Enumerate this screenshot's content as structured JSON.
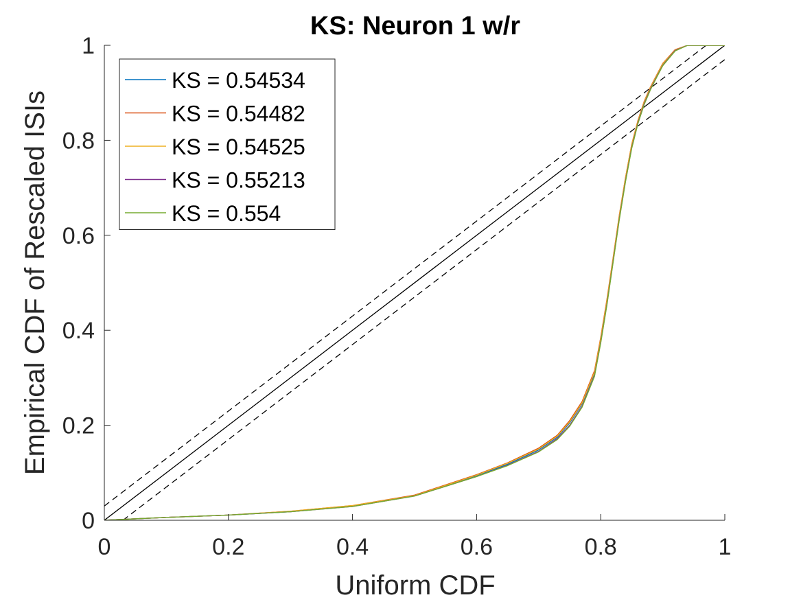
{
  "chart_data": {
    "type": "line",
    "title": "KS: Neuron 1 w/r",
    "xlabel": "Uniform CDF",
    "ylabel": "Empirical CDF of Rescaled ISIs",
    "xlim": [
      0,
      1
    ],
    "ylim": [
      0,
      1
    ],
    "xticks": [
      "0",
      "0.2",
      "0.4",
      "0.6",
      "0.8",
      "1"
    ],
    "yticks": [
      "0",
      "0.2",
      "0.4",
      "0.6",
      "0.8",
      "1"
    ],
    "grid": false,
    "legend_position": "top-left",
    "reference_lines": [
      {
        "role": "diagonal",
        "style": "solid",
        "color": "#000000",
        "points": [
          [
            0,
            0
          ],
          [
            1,
            1
          ]
        ]
      },
      {
        "role": "upper-bound",
        "style": "dashed",
        "color": "#000000",
        "points": [
          [
            0,
            0.03
          ],
          [
            0.97,
            1
          ]
        ]
      },
      {
        "role": "lower-bound",
        "style": "dashed",
        "color": "#000000",
        "points": [
          [
            0.03,
            0
          ],
          [
            1,
            0.97
          ]
        ]
      }
    ],
    "series": [
      {
        "name": "KS = 0.54534",
        "color": "#0072BD",
        "points": [
          [
            0,
            0
          ],
          [
            0.1,
            0.006
          ],
          [
            0.2,
            0.011
          ],
          [
            0.3,
            0.018
          ],
          [
            0.4,
            0.03
          ],
          [
            0.5,
            0.052
          ],
          [
            0.6,
            0.094
          ],
          [
            0.65,
            0.118
          ],
          [
            0.7,
            0.148
          ],
          [
            0.73,
            0.175
          ],
          [
            0.75,
            0.205
          ],
          [
            0.77,
            0.245
          ],
          [
            0.79,
            0.31
          ],
          [
            0.8,
            0.38
          ],
          [
            0.81,
            0.46
          ],
          [
            0.82,
            0.55
          ],
          [
            0.83,
            0.64
          ],
          [
            0.84,
            0.72
          ],
          [
            0.85,
            0.79
          ],
          [
            0.86,
            0.84
          ],
          [
            0.87,
            0.88
          ],
          [
            0.88,
            0.91
          ],
          [
            0.89,
            0.935
          ],
          [
            0.9,
            0.96
          ],
          [
            0.92,
            0.99
          ],
          [
            0.94,
            1
          ],
          [
            1,
            1
          ]
        ]
      },
      {
        "name": "KS = 0.54482",
        "color": "#D95319",
        "points": [
          [
            0,
            0
          ],
          [
            0.1,
            0.006
          ],
          [
            0.2,
            0.011
          ],
          [
            0.3,
            0.019
          ],
          [
            0.4,
            0.031
          ],
          [
            0.5,
            0.053
          ],
          [
            0.6,
            0.096
          ],
          [
            0.65,
            0.121
          ],
          [
            0.7,
            0.152
          ],
          [
            0.73,
            0.179
          ],
          [
            0.75,
            0.21
          ],
          [
            0.77,
            0.25
          ],
          [
            0.79,
            0.315
          ],
          [
            0.8,
            0.385
          ],
          [
            0.81,
            0.465
          ],
          [
            0.82,
            0.553
          ],
          [
            0.83,
            0.643
          ],
          [
            0.84,
            0.722
          ],
          [
            0.85,
            0.792
          ],
          [
            0.86,
            0.842
          ],
          [
            0.87,
            0.882
          ],
          [
            0.88,
            0.912
          ],
          [
            0.89,
            0.937
          ],
          [
            0.9,
            0.962
          ],
          [
            0.92,
            0.991
          ],
          [
            0.94,
            1
          ],
          [
            1,
            1
          ]
        ]
      },
      {
        "name": "KS = 0.54525",
        "color": "#EDB120",
        "points": [
          [
            0,
            0
          ],
          [
            0.1,
            0.006
          ],
          [
            0.2,
            0.011
          ],
          [
            0.3,
            0.019
          ],
          [
            0.4,
            0.031
          ],
          [
            0.5,
            0.052
          ],
          [
            0.6,
            0.095
          ],
          [
            0.65,
            0.12
          ],
          [
            0.7,
            0.15
          ],
          [
            0.73,
            0.177
          ],
          [
            0.75,
            0.207
          ],
          [
            0.77,
            0.247
          ],
          [
            0.79,
            0.312
          ],
          [
            0.8,
            0.382
          ],
          [
            0.81,
            0.462
          ],
          [
            0.82,
            0.551
          ],
          [
            0.83,
            0.641
          ],
          [
            0.84,
            0.721
          ],
          [
            0.85,
            0.791
          ],
          [
            0.86,
            0.841
          ],
          [
            0.87,
            0.881
          ],
          [
            0.88,
            0.911
          ],
          [
            0.89,
            0.936
          ],
          [
            0.9,
            0.961
          ],
          [
            0.92,
            0.99
          ],
          [
            0.94,
            1
          ],
          [
            1,
            1
          ]
        ]
      },
      {
        "name": "KS = 0.55213",
        "color": "#7E2F8E",
        "points": [
          [
            0,
            0
          ],
          [
            0.1,
            0.006
          ],
          [
            0.2,
            0.011
          ],
          [
            0.3,
            0.018
          ],
          [
            0.4,
            0.029
          ],
          [
            0.5,
            0.051
          ],
          [
            0.6,
            0.092
          ],
          [
            0.65,
            0.116
          ],
          [
            0.7,
            0.145
          ],
          [
            0.73,
            0.172
          ],
          [
            0.75,
            0.2
          ],
          [
            0.77,
            0.24
          ],
          [
            0.79,
            0.305
          ],
          [
            0.8,
            0.375
          ],
          [
            0.81,
            0.455
          ],
          [
            0.82,
            0.545
          ],
          [
            0.83,
            0.635
          ],
          [
            0.84,
            0.715
          ],
          [
            0.85,
            0.785
          ],
          [
            0.86,
            0.837
          ],
          [
            0.87,
            0.877
          ],
          [
            0.88,
            0.908
          ],
          [
            0.89,
            0.933
          ],
          [
            0.9,
            0.958
          ],
          [
            0.92,
            0.989
          ],
          [
            0.94,
            1
          ],
          [
            1,
            1
          ]
        ]
      },
      {
        "name": "KS = 0.554",
        "color": "#77AC30",
        "points": [
          [
            0,
            0
          ],
          [
            0.1,
            0.006
          ],
          [
            0.2,
            0.011
          ],
          [
            0.3,
            0.018
          ],
          [
            0.4,
            0.029
          ],
          [
            0.5,
            0.051
          ],
          [
            0.6,
            0.092
          ],
          [
            0.65,
            0.115
          ],
          [
            0.7,
            0.144
          ],
          [
            0.73,
            0.17
          ],
          [
            0.75,
            0.198
          ],
          [
            0.77,
            0.238
          ],
          [
            0.79,
            0.303
          ],
          [
            0.8,
            0.373
          ],
          [
            0.81,
            0.453
          ],
          [
            0.82,
            0.543
          ],
          [
            0.83,
            0.633
          ],
          [
            0.84,
            0.713
          ],
          [
            0.85,
            0.783
          ],
          [
            0.86,
            0.835
          ],
          [
            0.87,
            0.875
          ],
          [
            0.88,
            0.906
          ],
          [
            0.89,
            0.932
          ],
          [
            0.9,
            0.957
          ],
          [
            0.92,
            0.988
          ],
          [
            0.94,
            1
          ],
          [
            1,
            1
          ]
        ]
      }
    ]
  }
}
